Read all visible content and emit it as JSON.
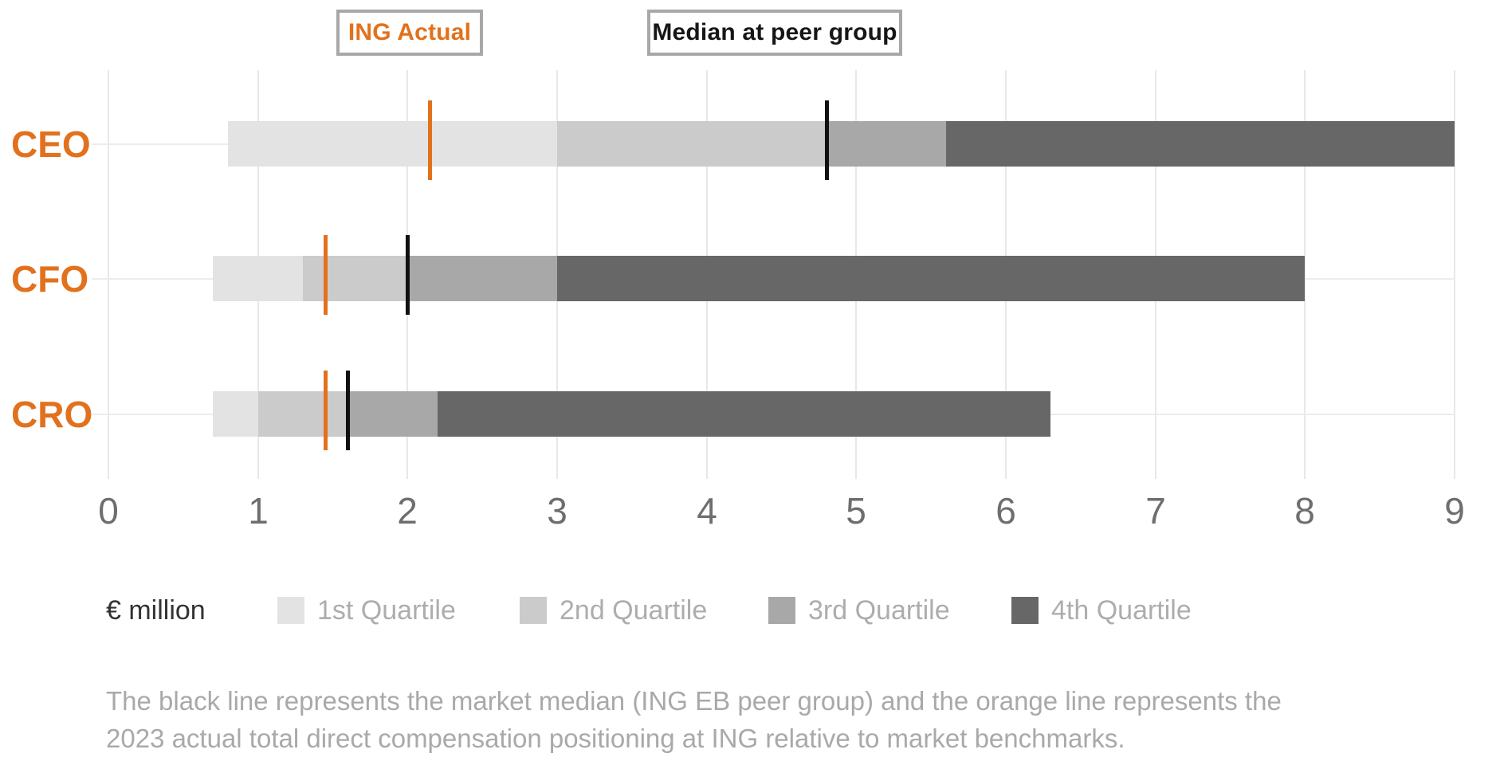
{
  "top_legend": {
    "ing_actual_label": "ING Actual",
    "median_label": "Median at peer group"
  },
  "colors": {
    "orange": "#E2711D",
    "black_marker": "#111111",
    "quartiles": [
      "#E3E3E3",
      "#CBCBCB",
      "#A8A8A8",
      "#676767"
    ],
    "grid_vertical": "#E8E8E8",
    "grid_horizontal": "#ECECEC",
    "tick_text": "#6E6E6E",
    "legend_text": "#ADADAD",
    "unit_text": "#333333",
    "footnote_text": "#A9A9A9",
    "box_border": "#A8A8A8"
  },
  "chart_data": {
    "type": "bar",
    "orientation": "horizontal",
    "unit_label": "€ million",
    "xlim": [
      0,
      9
    ],
    "ticks": [
      "0",
      "1",
      "2",
      "3",
      "4",
      "5",
      "6",
      "7",
      "8",
      "9"
    ],
    "grid": true,
    "quartile_legend": [
      "1st Quartile",
      "2nd Quartile",
      "3rd Quartile",
      "4th Quartile"
    ],
    "categories": [
      "CEO",
      "CFO",
      "CRO"
    ],
    "rows": [
      {
        "label": "CEO",
        "range_start": 0.8,
        "q1_end": 3.0,
        "median_peer_group": 4.8,
        "q3_end": 5.6,
        "range_end": 9.0,
        "ing_actual": 2.15
      },
      {
        "label": "CFO",
        "range_start": 0.7,
        "q1_end": 1.3,
        "median_peer_group": 2.0,
        "q3_end": 3.0,
        "range_end": 8.0,
        "ing_actual": 1.45
      },
      {
        "label": "CRO",
        "range_start": 0.7,
        "q1_end": 1.0,
        "median_peer_group": 1.6,
        "q3_end": 2.2,
        "range_end": 6.3,
        "ing_actual": 1.45
      }
    ]
  },
  "footnote": {
    "lines": [
      "The black line represents the market median (ING EB peer group) and the orange line represents the",
      "2023 actual total direct compensation positioning at ING relative to market benchmarks."
    ]
  }
}
